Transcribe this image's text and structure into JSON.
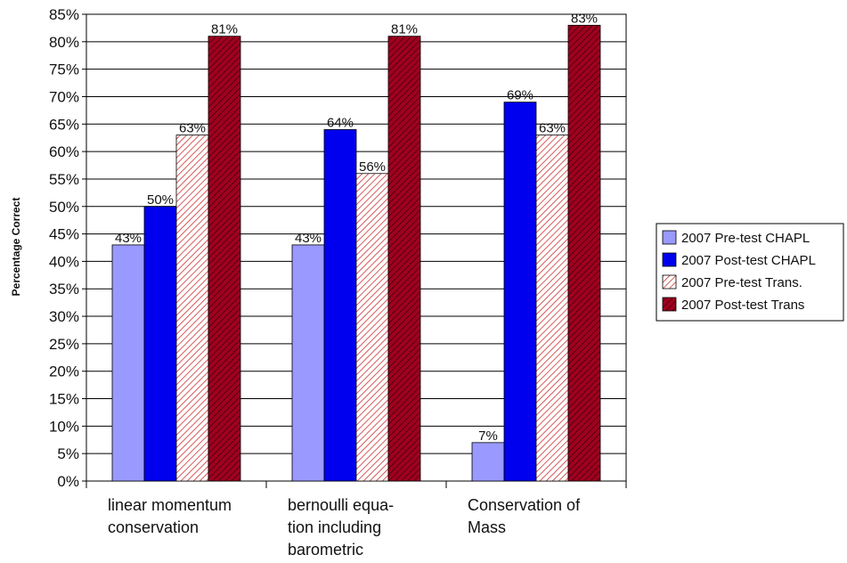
{
  "chart_data": {
    "type": "bar",
    "ylabel": "Percentage Correct",
    "ylim": [
      0,
      85
    ],
    "ytick_step": 5,
    "ytick_suffix": "%",
    "grid": true,
    "legend_position": "right",
    "categories": [
      [
        "linear momentum",
        "conservation"
      ],
      [
        "bernoulli equa-",
        "tion including",
        "barometric"
      ],
      [
        "Conservation of",
        "Mass"
      ]
    ],
    "series": [
      {
        "name": "2007 Pre-test CHAPL",
        "values": [
          43,
          43,
          7
        ],
        "labels": [
          "43%",
          "43%",
          "7%"
        ],
        "color": "#9999ff",
        "pattern": "solid"
      },
      {
        "name": "2007 Post-test CHAPL",
        "values": [
          50,
          64,
          69
        ],
        "labels": [
          "50%",
          "64%",
          "69%"
        ],
        "color": "#0000ee",
        "pattern": "solid"
      },
      {
        "name": "2007 Pre-test Trans.",
        "values": [
          63,
          56,
          63
        ],
        "labels": [
          "63%",
          "56%",
          "63%"
        ],
        "color": "#cc3333",
        "pattern": "light-hatch"
      },
      {
        "name": "2007 Post-test Trans",
        "values": [
          81,
          81,
          83
        ],
        "labels": [
          "81%",
          "81%",
          "83%"
        ],
        "color": "#a00020",
        "pattern": "dark-hatch"
      }
    ]
  }
}
